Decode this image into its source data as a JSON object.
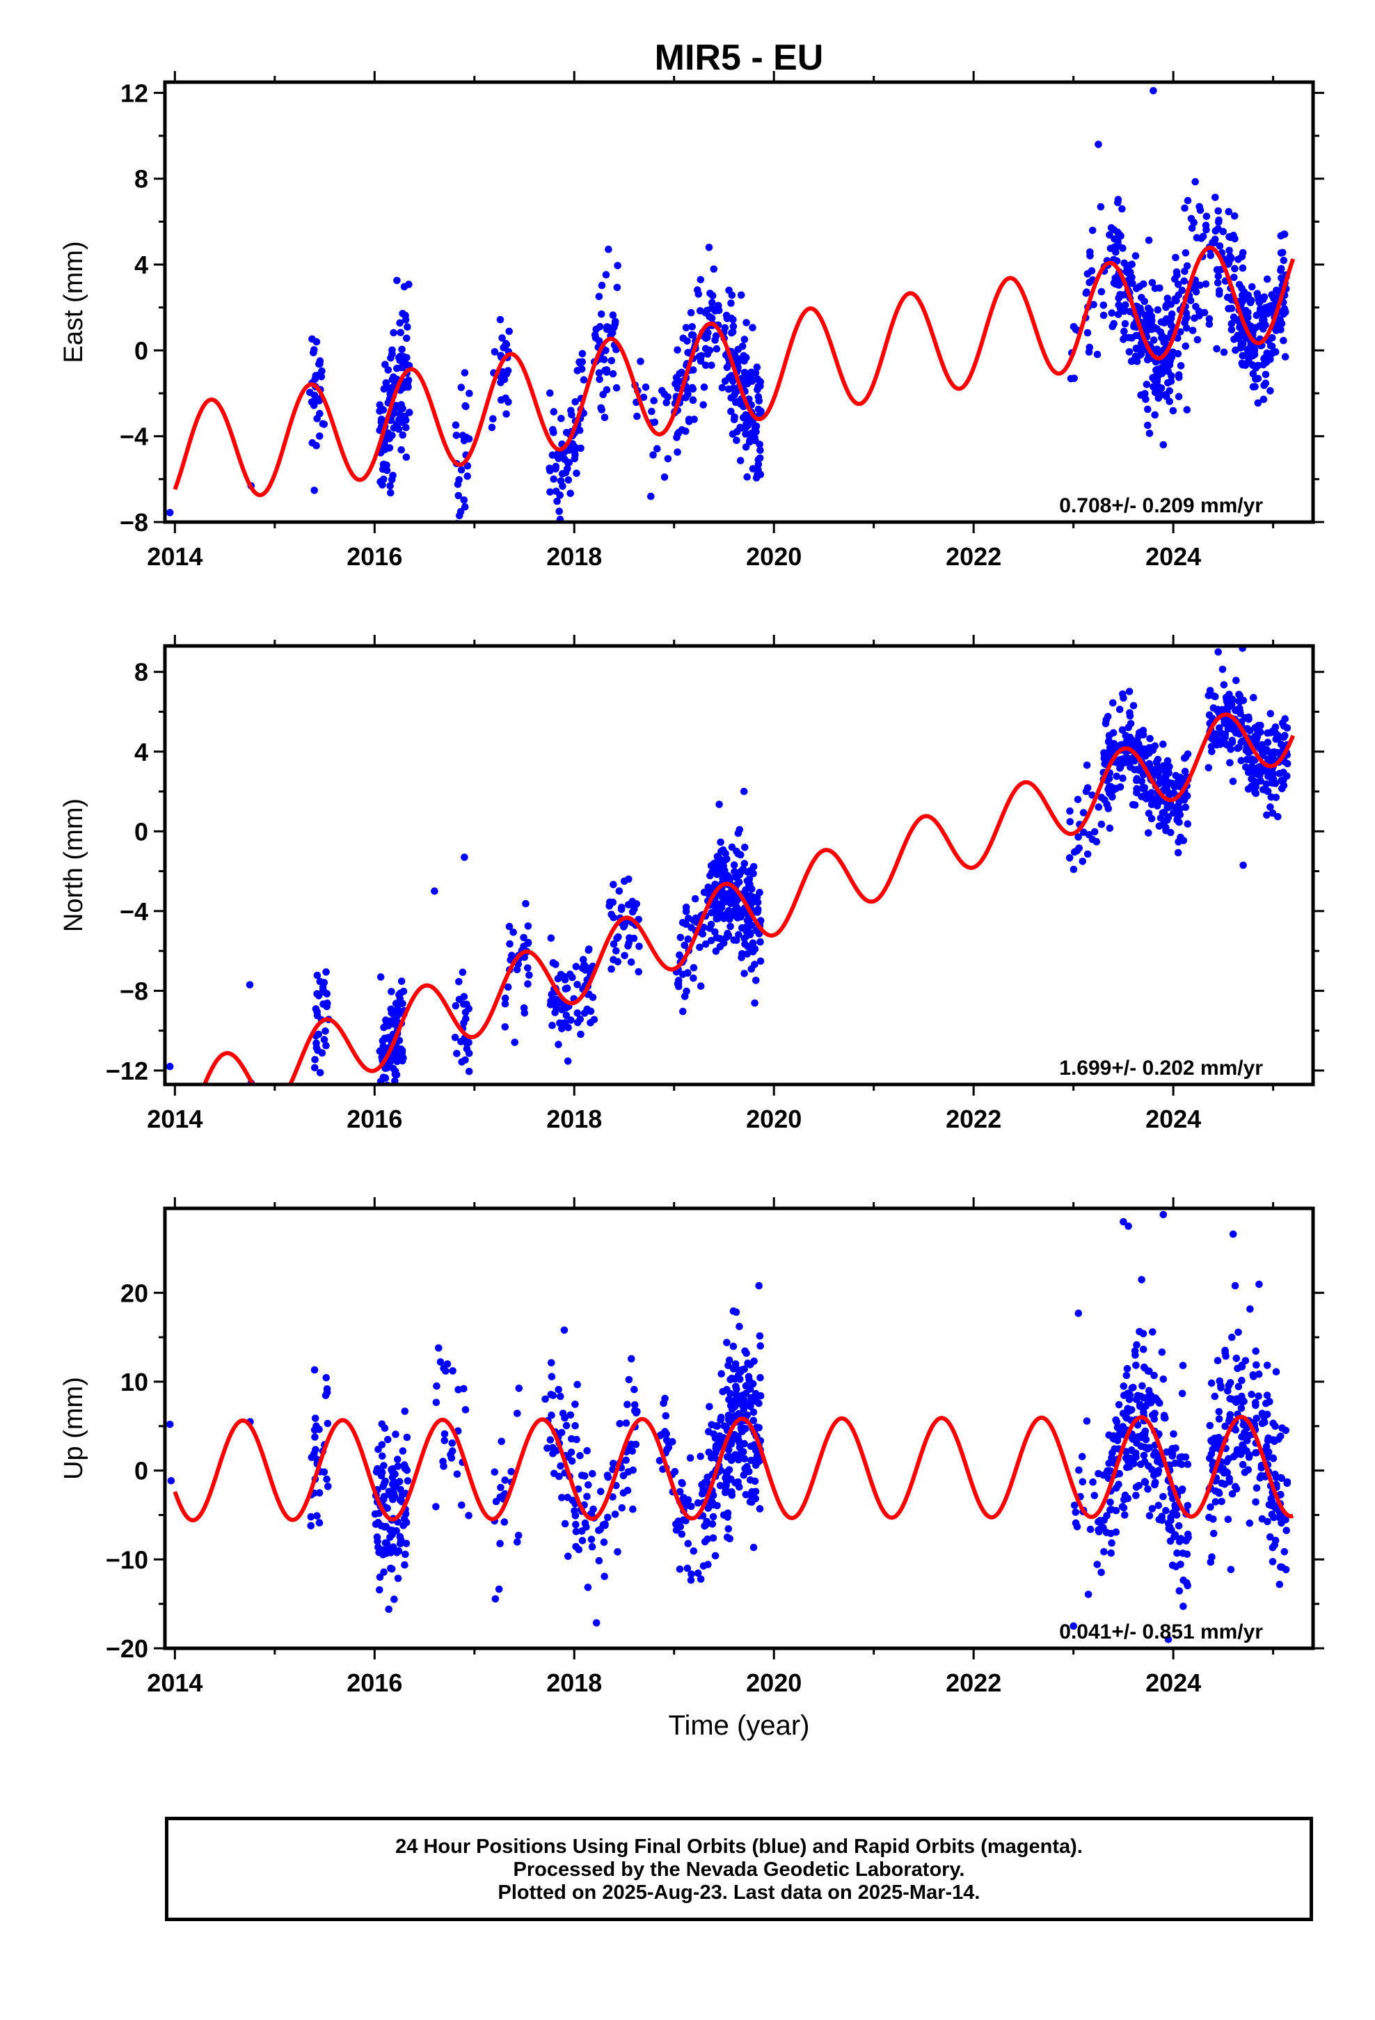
{
  "chart_data": {
    "type": "scatter",
    "title": "MIR5 - EU",
    "xlabel": "Time (year)",
    "xlim": [
      2013.9,
      2025.4
    ],
    "xticks": [
      2014,
      2016,
      2018,
      2020,
      2022,
      2024
    ],
    "legend": "none",
    "grid": false,
    "colors": {
      "observed": "#0000ff",
      "model": "#ff0000"
    },
    "panels": [
      {
        "id": "east",
        "ylabel": "East (mm)",
        "ylim": [
          -8,
          12.5
        ],
        "yticks": [
          -8,
          -4,
          0,
          4,
          8,
          12
        ],
        "rate_label": "0.708+/- 0.209 mm/yr",
        "model": {
          "offset": -4.95,
          "trend": 0.708,
          "t0": 2014.0,
          "amp_annual": 2.4,
          "phase_annual": 2014.36,
          "amp_semiannual": 0.0,
          "phase_semiannual": 2014.0
        },
        "clusters": [
          {
            "t0": 2013.95,
            "t1": 2013.97,
            "n": 1,
            "spread": 0.2
          },
          {
            "t0": 2014.75,
            "t1": 2014.77,
            "n": 1,
            "spread": 0.2
          },
          {
            "t0": 2015.35,
            "t1": 2015.5,
            "n": 30,
            "spread": 1.6
          },
          {
            "t0": 2016.05,
            "t1": 2016.35,
            "n": 120,
            "spread": 1.7
          },
          {
            "t0": 2016.8,
            "t1": 2016.95,
            "n": 25,
            "spread": 1.8
          },
          {
            "t0": 2017.15,
            "t1": 2017.35,
            "n": 25,
            "spread": 1.4
          },
          {
            "t0": 2017.75,
            "t1": 2018.1,
            "n": 70,
            "spread": 1.6
          },
          {
            "t0": 2018.2,
            "t1": 2018.45,
            "n": 45,
            "spread": 1.5
          },
          {
            "t0": 2018.6,
            "t1": 2018.95,
            "n": 20,
            "spread": 1.2
          },
          {
            "t0": 2019.0,
            "t1": 2019.55,
            "n": 110,
            "spread": 1.4
          },
          {
            "t0": 2019.55,
            "t1": 2019.87,
            "n": 130,
            "spread": 1.6
          },
          {
            "t0": 2022.95,
            "t1": 2023.05,
            "n": 6,
            "spread": 1.0
          },
          {
            "t0": 2023.1,
            "t1": 2023.4,
            "n": 30,
            "spread": 1.4
          },
          {
            "t0": 2023.4,
            "t1": 2024.0,
            "n": 220,
            "spread": 1.6
          },
          {
            "t0": 2024.0,
            "t1": 2024.4,
            "n": 70,
            "spread": 1.4
          },
          {
            "t0": 2024.4,
            "t1": 2024.65,
            "n": 50,
            "spread": 1.5
          },
          {
            "t0": 2024.65,
            "t1": 2025.15,
            "n": 180,
            "spread": 1.3
          }
        ],
        "outliers": [
          [
            2016.85,
            -7.7
          ],
          [
            2023.25,
            9.6
          ],
          [
            2023.8,
            12.1
          ],
          [
            2024.45,
            6.5
          ],
          [
            2023.9,
            -4.4
          ],
          [
            2017.85,
            -7.5
          ],
          [
            2019.35,
            4.8
          ]
        ]
      },
      {
        "id": "north",
        "ylabel": "North (mm)",
        "ylim": [
          -12.7,
          9.3
        ],
        "yticks": [
          -12,
          -8,
          -4,
          0,
          4,
          8
        ],
        "rate_label": "1.699+/- 0.202 mm/yr",
        "model": {
          "offset": -13.7,
          "trend": 1.699,
          "t0": 2014.0,
          "amp_annual": 1.7,
          "phase_annual": 2014.5,
          "amp_semiannual": 0.0,
          "phase_semiannual": 2014.0
        },
        "clusters": [
          {
            "t0": 2013.95,
            "t1": 2013.97,
            "n": 1,
            "spread": 0.2
          },
          {
            "t0": 2014.75,
            "t1": 2014.77,
            "n": 1,
            "spread": 0.2
          },
          {
            "t0": 2015.4,
            "t1": 2015.55,
            "n": 30,
            "spread": 1.5
          },
          {
            "t0": 2016.05,
            "t1": 2016.3,
            "n": 110,
            "spread": 1.3
          },
          {
            "t0": 2016.8,
            "t1": 2016.95,
            "n": 25,
            "spread": 1.3
          },
          {
            "t0": 2017.3,
            "t1": 2017.55,
            "n": 30,
            "spread": 1.3
          },
          {
            "t0": 2017.75,
            "t1": 2018.2,
            "n": 70,
            "spread": 1.3
          },
          {
            "t0": 2018.35,
            "t1": 2018.65,
            "n": 40,
            "spread": 1.2
          },
          {
            "t0": 2019.0,
            "t1": 2019.35,
            "n": 50,
            "spread": 1.2
          },
          {
            "t0": 2019.35,
            "t1": 2019.87,
            "n": 200,
            "spread": 1.3
          },
          {
            "t0": 2022.95,
            "t1": 2023.3,
            "n": 25,
            "spread": 1.2
          },
          {
            "t0": 2023.3,
            "t1": 2024.15,
            "n": 260,
            "spread": 1.1
          },
          {
            "t0": 2024.35,
            "t1": 2025.15,
            "n": 230,
            "spread": 1.1
          }
        ],
        "outliers": [
          [
            2013.95,
            -11.8
          ],
          [
            2014.75,
            -7.7
          ],
          [
            2016.6,
            -3.0
          ],
          [
            2016.9,
            -1.3
          ],
          [
            2024.45,
            9.0
          ],
          [
            2024.7,
            -1.7
          ],
          [
            2019.7,
            2.0
          ]
        ]
      },
      {
        "id": "up",
        "ylabel": "Up (mm)",
        "ylim": [
          -20,
          29.5
        ],
        "yticks": [
          -20,
          -10,
          0,
          10,
          20
        ],
        "rate_label": "0.041+/- 0.851 mm/yr",
        "model": {
          "offset": 0.0,
          "trend": 0.041,
          "t0": 2014.0,
          "amp_annual": 5.6,
          "phase_annual": 2014.68,
          "amp_semiannual": 0.0,
          "phase_semiannual": 2014.0
        },
        "clusters": [
          {
            "t0": 2013.95,
            "t1": 2013.97,
            "n": 1,
            "spread": 0.5
          },
          {
            "t0": 2014.75,
            "t1": 2014.77,
            "n": 1,
            "spread": 0.5
          },
          {
            "t0": 2015.35,
            "t1": 2015.55,
            "n": 30,
            "spread": 4.5
          },
          {
            "t0": 2016.0,
            "t1": 2016.35,
            "n": 110,
            "spread": 5.0
          },
          {
            "t0": 2016.6,
            "t1": 2016.95,
            "n": 25,
            "spread": 4.5
          },
          {
            "t0": 2017.2,
            "t1": 2017.45,
            "n": 20,
            "spread": 4.5
          },
          {
            "t0": 2017.7,
            "t1": 2018.2,
            "n": 70,
            "spread": 4.5
          },
          {
            "t0": 2018.2,
            "t1": 2018.65,
            "n": 45,
            "spread": 4.5
          },
          {
            "t0": 2018.85,
            "t1": 2019.3,
            "n": 55,
            "spread": 4.0
          },
          {
            "t0": 2019.3,
            "t1": 2019.87,
            "n": 230,
            "spread": 4.5
          },
          {
            "t0": 2023.0,
            "t1": 2023.35,
            "n": 30,
            "spread": 5.0
          },
          {
            "t0": 2023.35,
            "t1": 2024.15,
            "n": 240,
            "spread": 5.0
          },
          {
            "t0": 2024.35,
            "t1": 2025.15,
            "n": 220,
            "spread": 5.0
          }
        ],
        "outliers": [
          [
            2013.95,
            5.2
          ],
          [
            2023.5,
            28.0
          ],
          [
            2023.55,
            27.5
          ],
          [
            2023.9,
            28.8
          ],
          [
            2024.6,
            26.6
          ],
          [
            2024.62,
            20.8
          ],
          [
            2019.85,
            20.8
          ],
          [
            2023.05,
            17.7
          ],
          [
            2017.9,
            15.8
          ],
          [
            2023.0,
            -17.5
          ],
          [
            2023.95,
            -19.0
          ]
        ]
      }
    ]
  },
  "footer": {
    "line1": "24 Hour Positions Using Final Orbits (blue) and Rapid Orbits (magenta).",
    "line2": "Processed by the Nevada Geodetic Laboratory.",
    "line3": "Plotted on 2025-Aug-23. Last data on 2025-Mar-14."
  }
}
